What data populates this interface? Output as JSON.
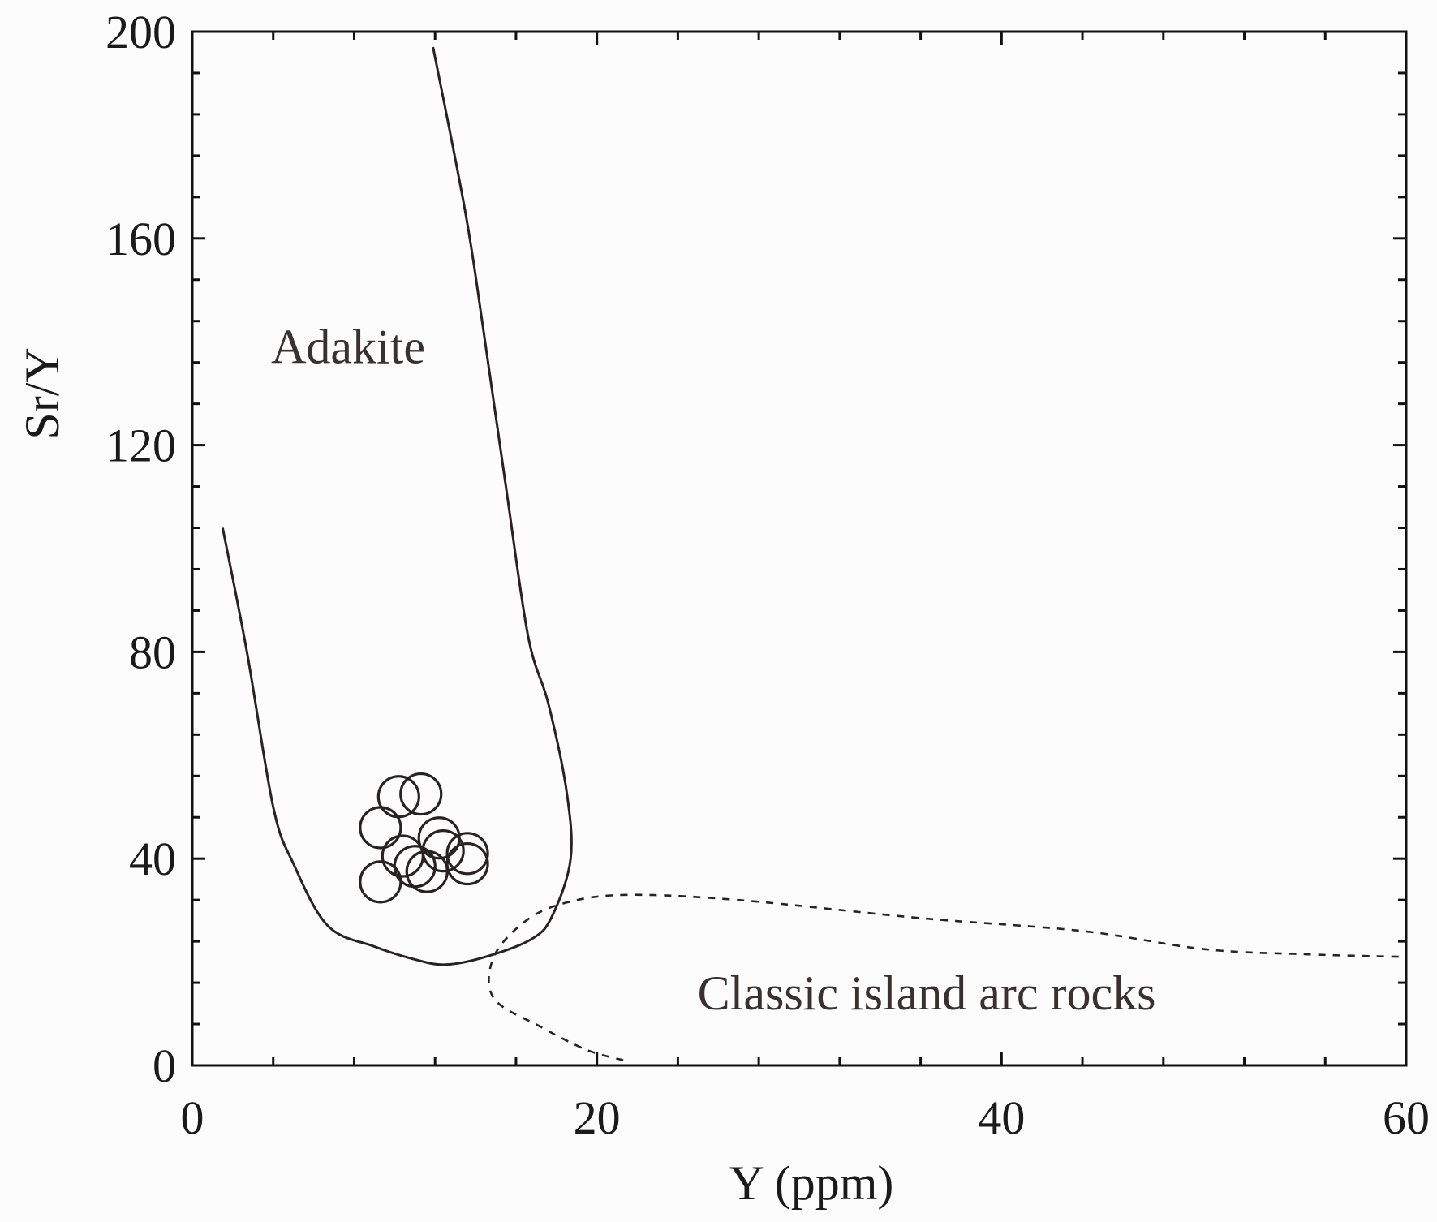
{
  "chart_data": {
    "type": "scatter",
    "xlabel": "Y (ppm)",
    "ylabel": "Sr/Y",
    "xlim": [
      0,
      60
    ],
    "ylim": [
      0,
      200
    ],
    "x_ticks": [
      "0",
      "20",
      "40",
      "60"
    ],
    "y_ticks": [
      "0",
      "40",
      "80",
      "120",
      "160",
      "200"
    ],
    "x_tick_values": [
      0,
      20,
      40,
      60
    ],
    "y_tick_values": [
      0,
      40,
      80,
      120,
      160,
      200
    ],
    "x_minor_step": 4,
    "y_minor_step": 8,
    "grid": false,
    "marker": "open circle",
    "points": [
      {
        "x": 10.2,
        "y": 52.0
      },
      {
        "x": 11.3,
        "y": 52.5
      },
      {
        "x": 9.3,
        "y": 46.0
      },
      {
        "x": 12.2,
        "y": 44.0
      },
      {
        "x": 10.4,
        "y": 40.5
      },
      {
        "x": 11.0,
        "y": 38.5
      },
      {
        "x": 11.6,
        "y": 37.5
      },
      {
        "x": 12.4,
        "y": 41.5
      },
      {
        "x": 13.6,
        "y": 41.0
      },
      {
        "x": 13.6,
        "y": 39.0
      },
      {
        "x": 9.3,
        "y": 35.5
      }
    ],
    "fields": [
      {
        "name": "Adakite",
        "style": "solid",
        "label_position": {
          "x": 7.7,
          "y": 138
        },
        "boundary": [
          [
            1.5,
            104
          ],
          [
            2.7,
            80
          ],
          [
            4.0,
            50
          ],
          [
            5.0,
            39
          ],
          [
            6.7,
            27
          ],
          [
            9.0,
            23
          ],
          [
            11.0,
            20.5
          ],
          [
            12.5,
            19.5
          ],
          [
            14.5,
            21
          ],
          [
            16.8,
            24.5
          ],
          [
            17.8,
            29
          ],
          [
            18.7,
            40
          ],
          [
            18.5,
            53
          ],
          [
            17.6,
            70
          ],
          [
            16.6,
            83
          ],
          [
            15.5,
            112
          ],
          [
            14.4,
            142
          ],
          [
            13.5,
            165
          ],
          [
            11.9,
            197
          ]
        ]
      },
      {
        "name": "Classic island arc rocks",
        "style": "dashed",
        "label_position": {
          "x": 36.3,
          "y": 13
        },
        "boundary": [
          [
            21.3,
            1
          ],
          [
            19.5,
            3
          ],
          [
            17.2,
            7.5
          ],
          [
            14.9,
            13
          ],
          [
            14.9,
            21
          ],
          [
            16.5,
            28
          ],
          [
            18.5,
            31.5
          ],
          [
            21.5,
            33
          ],
          [
            27.0,
            32
          ],
          [
            36.0,
            28.5
          ],
          [
            44.0,
            26
          ],
          [
            50.0,
            22.5
          ],
          [
            55.0,
            21.5
          ],
          [
            59.8,
            21
          ]
        ]
      }
    ]
  }
}
